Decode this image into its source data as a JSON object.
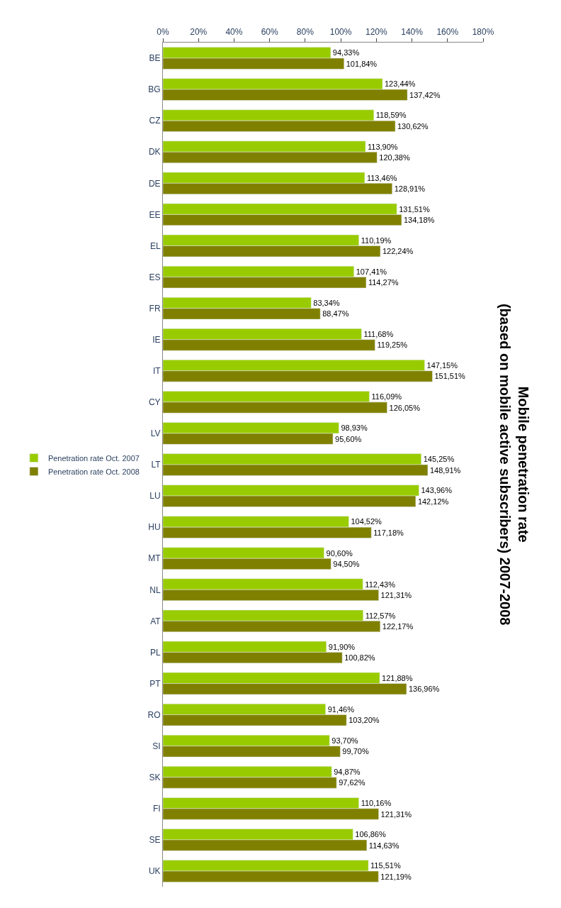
{
  "chart_data": {
    "type": "bar",
    "orientation": "horizontal",
    "title": "Mobile penetration rate\n(based on mobile active subscribers) 2007-2008",
    "categories": [
      "BE",
      "BG",
      "CZ",
      "DK",
      "DE",
      "EE",
      "EL",
      "ES",
      "FR",
      "IE",
      "IT",
      "CY",
      "LV",
      "LT",
      "LU",
      "HU",
      "MT",
      "NL",
      "AT",
      "PL",
      "PT",
      "RO",
      "SI",
      "SK",
      "FI",
      "SE",
      "UK"
    ],
    "series": [
      {
        "name": "Penetration rate Oct. 2007",
        "color": "#99cc00",
        "values": [
          94.33,
          123.44,
          118.59,
          113.9,
          113.46,
          131.51,
          110.19,
          107.41,
          83.34,
          111.68,
          147.15,
          116.09,
          98.93,
          145.25,
          143.96,
          104.52,
          90.6,
          112.43,
          112.57,
          91.9,
          121.88,
          91.46,
          93.7,
          94.87,
          110.16,
          106.86,
          115.51
        ],
        "value_labels": [
          "94,33%",
          "123,44%",
          "118,59%",
          "113,90%",
          "113,46%",
          "131,51%",
          "110,19%",
          "107,41%",
          "83,34%",
          "111,68%",
          "147,15%",
          "116,09%",
          "98,93%",
          "145,25%",
          "143,96%",
          "104,52%",
          "90,60%",
          "112,43%",
          "112,57%",
          "91,90%",
          "121,88%",
          "91,46%",
          "93,70%",
          "94,87%",
          "110,16%",
          "106,86%",
          "115,51%"
        ]
      },
      {
        "name": "Penetration rate Oct. 2008",
        "color": "#808000",
        "values": [
          101.84,
          137.42,
          130.62,
          120.38,
          128.91,
          134.18,
          122.24,
          114.27,
          88.47,
          119.25,
          151.51,
          126.05,
          95.6,
          148.91,
          142.12,
          117.18,
          94.5,
          121.31,
          122.17,
          100.82,
          136.96,
          103.2,
          99.7,
          97.62,
          121.31,
          114.63,
          121.19
        ],
        "value_labels": [
          "101,84%",
          "137,42%",
          "130,62%",
          "120,38%",
          "128,91%",
          "134,18%",
          "122,24%",
          "114,27%",
          "88,47%",
          "119,25%",
          "151,51%",
          "126,05%",
          "95,60%",
          "148,91%",
          "142,12%",
          "117,18%",
          "94,50%",
          "121,31%",
          "122,17%",
          "100,82%",
          "136,96%",
          "103,20%",
          "99,70%",
          "97,62%",
          "121,31%",
          "114,63%",
          "121,19%"
        ]
      }
    ],
    "xlim": [
      0,
      180
    ],
    "xticks": [
      {
        "value": 0,
        "label": "0%"
      },
      {
        "value": 20,
        "label": "20%"
      },
      {
        "value": 40,
        "label": "40%"
      },
      {
        "value": 60,
        "label": "60%"
      },
      {
        "value": 80,
        "label": "80%"
      },
      {
        "value": 100,
        "label": "100%"
      },
      {
        "value": 120,
        "label": "120%"
      },
      {
        "value": 140,
        "label": "140%"
      },
      {
        "value": 160,
        "label": "160%"
      },
      {
        "value": 180,
        "label": "180%"
      }
    ],
    "legend": "left"
  }
}
